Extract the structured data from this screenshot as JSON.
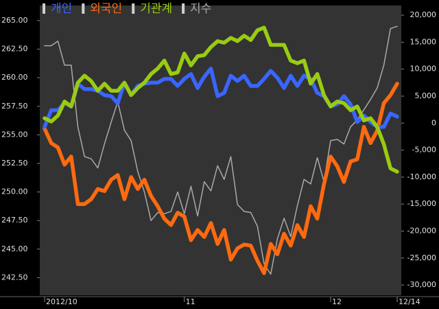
{
  "chart_data": {
    "type": "line",
    "x": [
      "2012/10",
      null,
      null,
      null,
      null,
      null,
      null,
      null,
      null,
      null,
      null,
      null,
      null,
      null,
      null,
      null,
      null,
      null,
      null,
      null,
      null,
      "11",
      null,
      null,
      null,
      null,
      null,
      null,
      null,
      null,
      null,
      null,
      null,
      null,
      null,
      null,
      null,
      null,
      null,
      null,
      null,
      null,
      null,
      "12",
      null,
      null,
      null,
      null,
      null,
      null,
      null,
      null,
      null,
      "12/14"
    ],
    "ylim": [
      240.96,
      266.32
    ],
    "yticks": [
      {
        "value": 265,
        "label": "265.00"
      },
      {
        "value": 262.5,
        "label": "262.50"
      },
      {
        "value": 260,
        "label": "260.00"
      },
      {
        "value": 257.5,
        "label": "257.50"
      },
      {
        "value": 255,
        "label": "255.00"
      },
      {
        "value": 252.5,
        "label": "252.50"
      },
      {
        "value": 250,
        "label": "250.00"
      },
      {
        "value": 247.5,
        "label": "247.50"
      },
      {
        "value": 245,
        "label": "245.00"
      },
      {
        "value": 242.5,
        "label": "242.50"
      }
    ],
    "y2lim": [
      -31900,
      21800
    ],
    "y2ticks": [
      {
        "value": 20000,
        "label": "20,000"
      },
      {
        "value": 15000,
        "label": "15,000"
      },
      {
        "value": 10000,
        "label": "10,000"
      },
      {
        "value": 5000,
        "label": "5,000"
      },
      0,
      {
        "value": -5000,
        "label": "-5,000"
      },
      {
        "value": -10000,
        "label": "-10,000"
      },
      {
        "value": -15000,
        "label": "-15,000"
      },
      {
        "value": -20000,
        "label": "-20,000"
      },
      {
        "value": -25000,
        "label": "-25,000"
      },
      {
        "value": -30000,
        "label": "-30,000"
      }
    ],
    "series": [
      {
        "name": "개인",
        "color": "#3a66ff",
        "axis": "y2",
        "values": [
          -700,
          2400,
          2400,
          3700,
          3100,
          7300,
          6300,
          6300,
          6000,
          5200,
          5000,
          3700,
          7500,
          5200,
          6900,
          7300,
          7500,
          7500,
          8200,
          8200,
          6900,
          8200,
          9100,
          6500,
          8600,
          10100,
          5000,
          5600,
          8800,
          7800,
          8800,
          6900,
          6900,
          8200,
          9700,
          8400,
          6500,
          8800,
          6900,
          8800,
          8200,
          5600,
          5000,
          3100,
          3500,
          5000,
          3500,
          200,
          1400,
          200,
          -700,
          -700,
          1800,
          1200
        ]
      },
      {
        "name": "외국인",
        "color": "#ff6a10",
        "axis": "y2",
        "values": [
          -1000,
          -3700,
          -4500,
          -7700,
          -6200,
          -15000,
          -15000,
          -14100,
          -12200,
          -12600,
          -10500,
          -9600,
          -14100,
          -10000,
          -12200,
          -10500,
          -13500,
          -15400,
          -17700,
          -18900,
          -16600,
          -17300,
          -21700,
          -19800,
          -21100,
          -18500,
          -22400,
          -19800,
          -25300,
          -23200,
          -22500,
          -22700,
          -25500,
          -27800,
          -22400,
          -24300,
          -20500,
          -22700,
          -18900,
          -21100,
          -15400,
          -17700,
          -11300,
          -6200,
          -8000,
          -10900,
          -7100,
          -6700,
          -700,
          -3700,
          -1400,
          3700,
          5200,
          7300
        ]
      },
      {
        "name": "기관계",
        "color": "#99cc11",
        "axis": "y2",
        "values": [
          900,
          300,
          1400,
          4000,
          3100,
          7500,
          8800,
          7800,
          6000,
          7300,
          6000,
          6000,
          7500,
          5200,
          6500,
          7500,
          9100,
          10100,
          11600,
          9100,
          9400,
          12900,
          10700,
          12400,
          12600,
          14100,
          15200,
          14900,
          15800,
          15200,
          16200,
          15400,
          17200,
          17700,
          14500,
          14500,
          14500,
          11600,
          11100,
          11600,
          7300,
          9100,
          5200,
          3100,
          4000,
          3700,
          2400,
          3100,
          500,
          900,
          -700,
          -3900,
          -8400,
          -9000
        ]
      },
      {
        "name": "지수",
        "color": "#aaaaaa",
        "values": [
          262.8,
          262.8,
          263.2,
          261.1,
          261.1,
          255.7,
          253.1,
          252.9,
          252.1,
          254.2,
          256.1,
          257.9,
          255.4,
          254.5,
          251.8,
          250.0,
          247.5,
          248.2,
          248.1,
          248.3,
          250.0,
          248.1,
          250.5,
          247.9,
          250.9,
          250.1,
          252.3,
          251.1,
          253.1,
          248.9,
          248.3,
          248.2,
          247.0,
          243.7,
          242.8,
          245.9,
          247.7,
          246.1,
          248.8,
          251.1,
          250.7,
          253.0,
          250.9,
          254.5,
          254.6,
          254.2,
          255.7,
          256.3,
          257.2,
          258.1,
          259.1,
          261.1,
          264.3,
          264.5
        ]
      }
    ]
  }
}
